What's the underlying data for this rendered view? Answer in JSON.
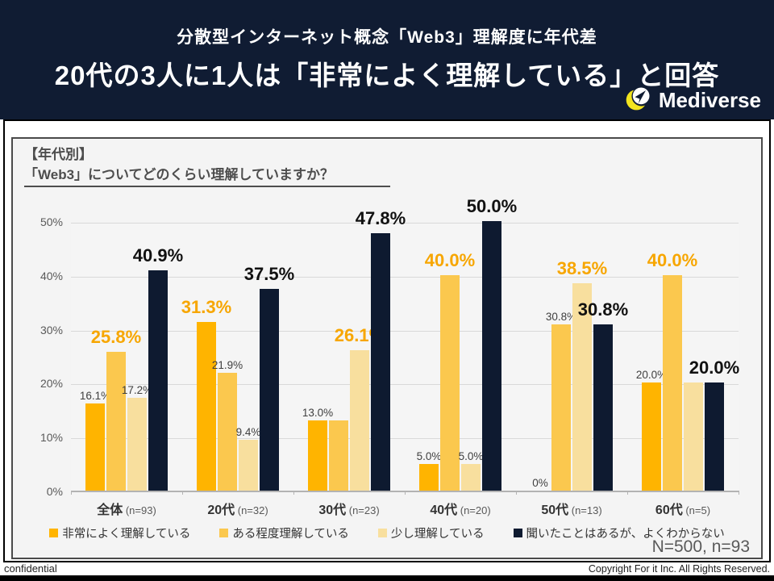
{
  "header": {
    "subtitle": "分散型インターネット概念「Web3」理解度に年代差",
    "title": "20代の3人に1人は「非常によく理解している」と回答",
    "brand": "Mediverse"
  },
  "panel": {
    "question_line1": "【年代別】",
    "question_line2": "「Web3」についてどのくらい理解していますか？"
  },
  "chart_data": {
    "type": "bar",
    "title": "【年代別】「Web3」についてどのくらい理解していますか？",
    "xlabel": "",
    "ylabel": "",
    "ylim": [
      0,
      50
    ],
    "yticks": [
      "50%",
      "40%",
      "30%",
      "20%",
      "10%",
      "0%"
    ],
    "grid": true,
    "legend_position": "bottom",
    "categories": [
      "全体",
      "20代",
      "30代",
      "40代",
      "50代",
      "60代"
    ],
    "category_n": [
      "(n=93)",
      "(n=32)",
      "(n=23)",
      "(n=20)",
      "(n=13)",
      "(n=5)"
    ],
    "series": [
      {
        "name": "非常によく理解している",
        "color": "#FFB400",
        "values": [
          16.1,
          31.3,
          13.0,
          5.0,
          0,
          20.0
        ]
      },
      {
        "name": "ある程度理解している",
        "color": "#FBC84E",
        "values": [
          25.8,
          21.9,
          13.0,
          40.0,
          30.8,
          40.0
        ]
      },
      {
        "name": "少し理解している",
        "color": "#F8DF9E",
        "values": [
          17.2,
          9.4,
          26.1,
          5.0,
          38.5,
          20.0
        ]
      },
      {
        "name": "聞いたことはあるが、よくわからない",
        "color": "#0E1A30",
        "values": [
          40.9,
          37.5,
          47.8,
          50.0,
          30.8,
          20.0
        ]
      }
    ],
    "groups": [
      {
        "label": "全体",
        "n": "(n=93)",
        "values": [
          16.1,
          25.8,
          17.2,
          40.9
        ],
        "labels": [
          "16.1%",
          "25.8%",
          "17.2%",
          "40.9%"
        ],
        "label_styles": [
          "small",
          "accent",
          "small",
          "dark"
        ]
      },
      {
        "label": "20代",
        "n": "(n=32)",
        "values": [
          31.3,
          21.9,
          9.4,
          37.5
        ],
        "labels": [
          "31.3%",
          "21.9%",
          "9.4%",
          "37.5%"
        ],
        "label_styles": [
          "accent",
          "small",
          "small",
          "dark"
        ]
      },
      {
        "label": "30代",
        "n": "(n=23)",
        "values": [
          13.0,
          13.0,
          26.1,
          47.8
        ],
        "labels": [
          "13.0%",
          "",
          "26.1%",
          "47.8%"
        ],
        "label_styles": [
          "small",
          "none",
          "accent",
          "dark"
        ]
      },
      {
        "label": "40代",
        "n": "(n=20)",
        "values": [
          5.0,
          40.0,
          5.0,
          50.0
        ],
        "labels": [
          "5.0%",
          "40.0%",
          "5.0%",
          "50.0%"
        ],
        "label_styles": [
          "small",
          "accent",
          "small",
          "dark"
        ]
      },
      {
        "label": "50代",
        "n": "(n=13)",
        "values": [
          0,
          30.8,
          38.5,
          30.8
        ],
        "labels": [
          "0%",
          "30.8%",
          "38.5%",
          "30.8%"
        ],
        "label_styles": [
          "small",
          "small",
          "accent",
          "dark"
        ]
      },
      {
        "label": "60代",
        "n": "(n=5)",
        "values": [
          20.0,
          40.0,
          20.0,
          20.0
        ],
        "labels": [
          "20.0%",
          "40.0%",
          "",
          "20.0%"
        ],
        "label_styles": [
          "small",
          "accent",
          "none",
          "dark"
        ]
      }
    ],
    "colors": {
      "accent_label": "#F7A600",
      "dark_label": "#111111",
      "series": [
        "#FFB400",
        "#FBC84E",
        "#F8DF9E",
        "#0E1A30"
      ]
    },
    "legend": [
      {
        "label": "非常によく理解している",
        "color": "#FFB400"
      },
      {
        "label": "ある程度理解している",
        "color": "#FBC84E"
      },
      {
        "label": "少し理解している",
        "color": "#F8DF9E"
      },
      {
        "label": "聞いたことはあるが、よくわからない",
        "color": "#0E1A30"
      }
    ]
  },
  "footer": {
    "sample": "N=500, n=93",
    "confidential": "confidential",
    "copyright": "Copyright For it Inc. All Rights Reserved."
  }
}
